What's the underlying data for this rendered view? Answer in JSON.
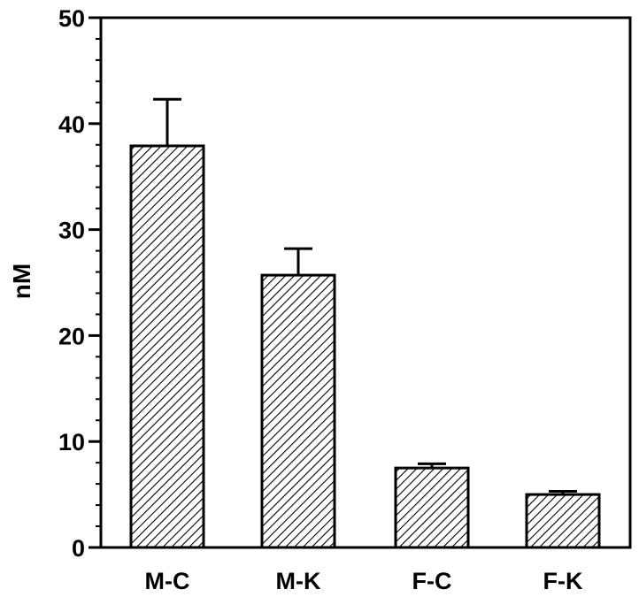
{
  "chart_data": {
    "type": "bar",
    "title": "",
    "xlabel": "",
    "ylabel": "nM",
    "categories": [
      "M-C",
      "M-K",
      "F-C",
      "F-K"
    ],
    "values": [
      37.9,
      25.7,
      7.5,
      5.0
    ],
    "error_plus": [
      4.4,
      2.5,
      0.4,
      0.3
    ],
    "ylim": [
      0,
      50
    ],
    "y_major_ticks": [
      0,
      10,
      20,
      30,
      40,
      50
    ],
    "y_minor_step": 2,
    "y_tick_labels": [
      "0",
      "10",
      "20",
      "30",
      "40",
      "50"
    ],
    "grid": false,
    "legend": "none",
    "bar_fill": "diagonal-hatch",
    "colors": {
      "bar_stroke": "#000000",
      "hatch": "#000000",
      "axis": "#000000",
      "background": "#ffffff"
    }
  }
}
